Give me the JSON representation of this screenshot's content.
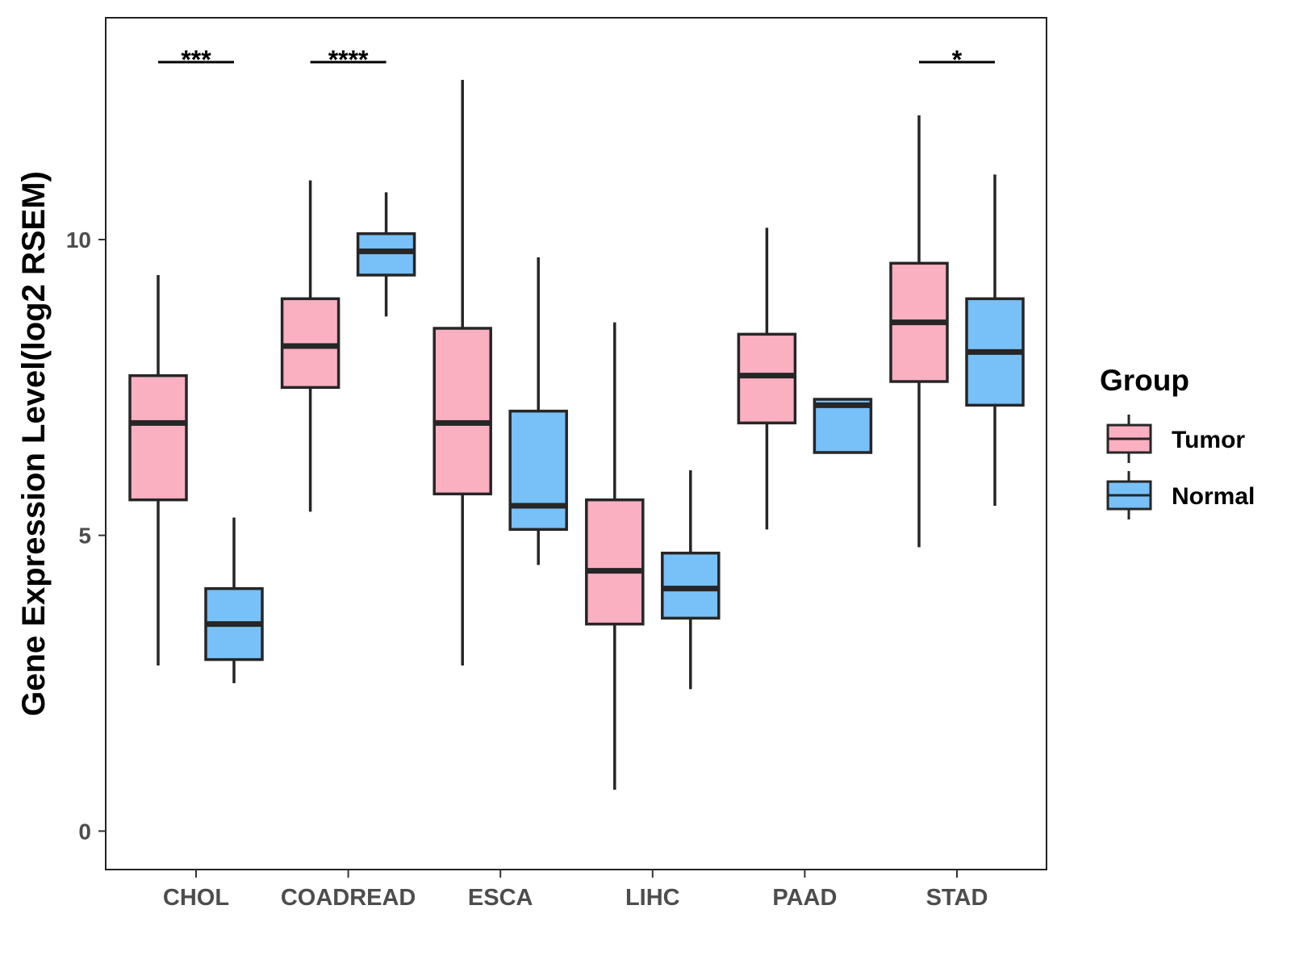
{
  "chart_data": {
    "type": "boxplot",
    "ylabel": "Gene Expression Level(log2 RSEM)",
    "xlabel": "",
    "ylim": [
      -0.65,
      13.75
    ],
    "yticks": [
      0,
      5,
      10
    ],
    "grid": false,
    "legend": {
      "title": "Group",
      "position": "right",
      "entries": [
        {
          "name": "Tumor",
          "color": "#FBB0C1"
        },
        {
          "name": "Normal",
          "color": "#78C0F8"
        }
      ]
    },
    "categories": [
      "CHOL",
      "COADREAD",
      "ESCA",
      "LIHC",
      "PAAD",
      "STAD"
    ],
    "series": [
      {
        "name": "Tumor",
        "color": "#FBB0C1",
        "boxes": [
          {
            "category": "CHOL",
            "min": 2.8,
            "q1": 5.6,
            "median": 6.9,
            "q3": 7.7,
            "max": 9.4
          },
          {
            "category": "COADREAD",
            "min": 5.4,
            "q1": 7.5,
            "median": 8.2,
            "q3": 9.0,
            "max": 11.0
          },
          {
            "category": "ESCA",
            "min": 2.8,
            "q1": 5.7,
            "median": 6.9,
            "q3": 8.5,
            "max": 12.7
          },
          {
            "category": "LIHC",
            "min": 0.7,
            "q1": 3.5,
            "median": 4.4,
            "q3": 5.6,
            "max": 8.6
          },
          {
            "category": "PAAD",
            "min": 5.1,
            "q1": 6.9,
            "median": 7.7,
            "q3": 8.4,
            "max": 10.2
          },
          {
            "category": "STAD",
            "min": 4.8,
            "q1": 7.6,
            "median": 8.6,
            "q3": 9.6,
            "max": 12.1
          }
        ]
      },
      {
        "name": "Normal",
        "color": "#78C0F8",
        "boxes": [
          {
            "category": "CHOL",
            "min": 2.5,
            "q1": 2.9,
            "median": 3.5,
            "q3": 4.1,
            "max": 5.3
          },
          {
            "category": "COADREAD",
            "min": 8.7,
            "q1": 9.4,
            "median": 9.8,
            "q3": 10.1,
            "max": 10.8
          },
          {
            "category": "ESCA",
            "min": 4.5,
            "q1": 5.1,
            "median": 5.5,
            "q3": 7.1,
            "max": 9.7
          },
          {
            "category": "LIHC",
            "min": 2.4,
            "q1": 3.6,
            "median": 4.1,
            "q3": 4.7,
            "max": 6.1
          },
          {
            "category": "PAAD",
            "min": 6.4,
            "q1": 6.4,
            "median": 7.2,
            "q3": 7.3,
            "max": 7.3
          },
          {
            "category": "STAD",
            "min": 5.5,
            "q1": 7.2,
            "median": 8.1,
            "q3": 9.0,
            "max": 11.1
          }
        ]
      }
    ],
    "significance": [
      {
        "category": "CHOL",
        "label": "***",
        "y": 13.0
      },
      {
        "category": "COADREAD",
        "label": "****",
        "y": 13.0
      },
      {
        "category": "STAD",
        "label": "*",
        "y": 13.0
      }
    ]
  }
}
